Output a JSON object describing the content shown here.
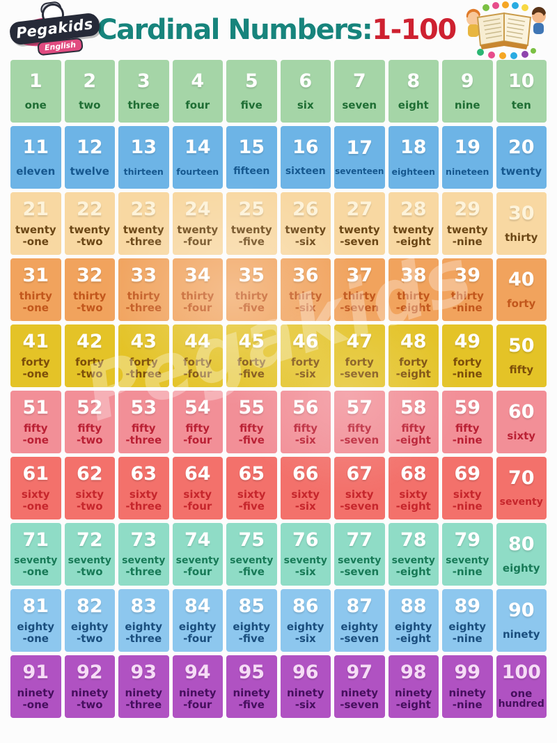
{
  "header": {
    "logo": {
      "brand": "Pegakids",
      "sub": "English"
    },
    "title": {
      "main": "Cardinal Numbers:",
      "range": "1-100",
      "main_color": "#17847c",
      "range_color": "#ce2130"
    },
    "illustration": "open-book-with-kids",
    "watermark_text": "Pegakids"
  },
  "grid": {
    "rows": [
      {
        "bg": "#a5d5a7",
        "num_color": "#ffffff",
        "word_color": "#1f6e34",
        "cells": [
          {
            "n": "1",
            "lines": [
              "one"
            ]
          },
          {
            "n": "2",
            "lines": [
              "two"
            ]
          },
          {
            "n": "3",
            "lines": [
              "three"
            ]
          },
          {
            "n": "4",
            "lines": [
              "four"
            ]
          },
          {
            "n": "5",
            "lines": [
              "five"
            ]
          },
          {
            "n": "6",
            "lines": [
              "six"
            ]
          },
          {
            "n": "7",
            "lines": [
              "seven"
            ]
          },
          {
            "n": "8",
            "lines": [
              "eight"
            ]
          },
          {
            "n": "9",
            "lines": [
              "nine"
            ]
          },
          {
            "n": "10",
            "lines": [
              "ten"
            ]
          }
        ]
      },
      {
        "bg": "#6db4e6",
        "num_color": "#ffffff",
        "word_color": "#16588f",
        "cells": [
          {
            "n": "11",
            "lines": [
              "eleven"
            ]
          },
          {
            "n": "12",
            "lines": [
              "twelve"
            ]
          },
          {
            "n": "13",
            "lines": [
              "thirteen"
            ]
          },
          {
            "n": "14",
            "lines": [
              "fourteen"
            ]
          },
          {
            "n": "15",
            "lines": [
              "fifteen"
            ]
          },
          {
            "n": "16",
            "lines": [
              "sixteen"
            ]
          },
          {
            "n": "17",
            "lines": [
              "seventeen"
            ]
          },
          {
            "n": "18",
            "lines": [
              "eighteen"
            ]
          },
          {
            "n": "19",
            "lines": [
              "nineteen"
            ]
          },
          {
            "n": "20",
            "lines": [
              "twenty"
            ]
          }
        ]
      },
      {
        "bg": "#f8d8a2",
        "num_color": "#fdf3da",
        "word_color": "#6b4716",
        "cells": [
          {
            "n": "21",
            "lines": [
              "twenty",
              "-one"
            ]
          },
          {
            "n": "22",
            "lines": [
              "twenty",
              "-two"
            ]
          },
          {
            "n": "23",
            "lines": [
              "twenty",
              "-three"
            ]
          },
          {
            "n": "24",
            "lines": [
              "twenty",
              "-four"
            ]
          },
          {
            "n": "25",
            "lines": [
              "twenty",
              "-five"
            ]
          },
          {
            "n": "26",
            "lines": [
              "twenty",
              "-six"
            ]
          },
          {
            "n": "27",
            "lines": [
              "twenty",
              "-seven"
            ]
          },
          {
            "n": "28",
            "lines": [
              "twenty",
              "-eight"
            ]
          },
          {
            "n": "29",
            "lines": [
              "twenty",
              "-nine"
            ]
          },
          {
            "n": "30",
            "lines": [
              "thirty"
            ]
          }
        ]
      },
      {
        "bg": "#f1a35d",
        "num_color": "#ffffff",
        "word_color": "#c2571c",
        "cells": [
          {
            "n": "31",
            "lines": [
              "thirty",
              "-one"
            ]
          },
          {
            "n": "32",
            "lines": [
              "thirty",
              "-two"
            ]
          },
          {
            "n": "33",
            "lines": [
              "thirty",
              "-three"
            ]
          },
          {
            "n": "34",
            "lines": [
              "thirty",
              "-four"
            ]
          },
          {
            "n": "35",
            "lines": [
              "thirty",
              "-five"
            ]
          },
          {
            "n": "36",
            "lines": [
              "thirty",
              "-six"
            ]
          },
          {
            "n": "37",
            "lines": [
              "thirty",
              "-seven"
            ]
          },
          {
            "n": "38",
            "lines": [
              "thirty",
              "-eight"
            ]
          },
          {
            "n": "39",
            "lines": [
              "thirty",
              "-nine"
            ]
          },
          {
            "n": "40",
            "lines": [
              "forty"
            ]
          }
        ]
      },
      {
        "bg": "#e4c327",
        "num_color": "#ffffff",
        "word_color": "#7c4e0a",
        "cells": [
          {
            "n": "41",
            "lines": [
              "forty",
              "-one"
            ]
          },
          {
            "n": "42",
            "lines": [
              "forty",
              "-two"
            ]
          },
          {
            "n": "43",
            "lines": [
              "forty",
              "-three"
            ]
          },
          {
            "n": "44",
            "lines": [
              "forty",
              "-four"
            ]
          },
          {
            "n": "45",
            "lines": [
              "forty",
              "-five"
            ]
          },
          {
            "n": "46",
            "lines": [
              "forty",
              "-six"
            ]
          },
          {
            "n": "47",
            "lines": [
              "forty",
              "-seven"
            ]
          },
          {
            "n": "48",
            "lines": [
              "forty",
              "-eight"
            ]
          },
          {
            "n": "49",
            "lines": [
              "forty",
              "-nine"
            ]
          },
          {
            "n": "50",
            "lines": [
              "fifty"
            ]
          }
        ]
      },
      {
        "bg": "#f28f97",
        "num_color": "#ffffff",
        "word_color": "#ba2034",
        "cells": [
          {
            "n": "51",
            "lines": [
              "fifty",
              "-one"
            ]
          },
          {
            "n": "52",
            "lines": [
              "fifty",
              "-two"
            ]
          },
          {
            "n": "53",
            "lines": [
              "fifty",
              "-three"
            ]
          },
          {
            "n": "54",
            "lines": [
              "fifty",
              "-four"
            ]
          },
          {
            "n": "55",
            "lines": [
              "fifty",
              "-five"
            ]
          },
          {
            "n": "56",
            "lines": [
              "fifty",
              "-six"
            ]
          },
          {
            "n": "57",
            "lines": [
              "fifty",
              "-seven"
            ]
          },
          {
            "n": "58",
            "lines": [
              "fifty",
              "-eight"
            ]
          },
          {
            "n": "59",
            "lines": [
              "fifty",
              "-nine"
            ]
          },
          {
            "n": "60",
            "lines": [
              "sixty"
            ]
          }
        ]
      },
      {
        "bg": "#f3716b",
        "num_color": "#ffffff",
        "word_color": "#c6262c",
        "cells": [
          {
            "n": "61",
            "lines": [
              "sixty",
              "-one"
            ]
          },
          {
            "n": "62",
            "lines": [
              "sixty",
              "-two"
            ]
          },
          {
            "n": "63",
            "lines": [
              "sixty",
              "-three"
            ]
          },
          {
            "n": "64",
            "lines": [
              "sixty",
              "-four"
            ]
          },
          {
            "n": "65",
            "lines": [
              "sixty",
              "-five"
            ]
          },
          {
            "n": "66",
            "lines": [
              "sixty",
              "-six"
            ]
          },
          {
            "n": "67",
            "lines": [
              "sixty",
              "-seven"
            ]
          },
          {
            "n": "68",
            "lines": [
              "sixty",
              "-eight"
            ]
          },
          {
            "n": "69",
            "lines": [
              "sixty",
              "-nine"
            ]
          },
          {
            "n": "70",
            "lines": [
              "seventy"
            ]
          }
        ]
      },
      {
        "bg": "#8fdcc6",
        "num_color": "#ffffff",
        "word_color": "#187a57",
        "cells": [
          {
            "n": "71",
            "lines": [
              "seventy",
              "-one"
            ]
          },
          {
            "n": "72",
            "lines": [
              "seventy",
              "-two"
            ]
          },
          {
            "n": "73",
            "lines": [
              "seventy",
              "-three"
            ]
          },
          {
            "n": "74",
            "lines": [
              "seventy",
              "-four"
            ]
          },
          {
            "n": "75",
            "lines": [
              "seventy",
              "-five"
            ]
          },
          {
            "n": "76",
            "lines": [
              "seventy",
              "-six"
            ]
          },
          {
            "n": "77",
            "lines": [
              "seventy",
              "-seven"
            ]
          },
          {
            "n": "78",
            "lines": [
              "seventy",
              "-eight"
            ]
          },
          {
            "n": "79",
            "lines": [
              "seventy",
              "-nine"
            ]
          },
          {
            "n": "80",
            "lines": [
              "eighty"
            ]
          }
        ]
      },
      {
        "bg": "#8dc7ee",
        "num_color": "#ffffff",
        "word_color": "#1a4e7d",
        "cells": [
          {
            "n": "81",
            "lines": [
              "eighty",
              "-one"
            ]
          },
          {
            "n": "82",
            "lines": [
              "eighty",
              "-two"
            ]
          },
          {
            "n": "83",
            "lines": [
              "eighty",
              "-three"
            ]
          },
          {
            "n": "84",
            "lines": [
              "eighty",
              "-four"
            ]
          },
          {
            "n": "85",
            "lines": [
              "eighty",
              "-five"
            ]
          },
          {
            "n": "86",
            "lines": [
              "eighty",
              "-six"
            ]
          },
          {
            "n": "87",
            "lines": [
              "eighty",
              "-seven"
            ]
          },
          {
            "n": "88",
            "lines": [
              "eighty",
              "-eight"
            ]
          },
          {
            "n": "89",
            "lines": [
              "eighty",
              "-nine"
            ]
          },
          {
            "n": "90",
            "lines": [
              "ninety"
            ]
          }
        ]
      },
      {
        "bg": "#b052c2",
        "num_color": "#f6dcf6",
        "word_color": "#460f5e",
        "cells": [
          {
            "n": "91",
            "lines": [
              "ninety",
              "-one"
            ]
          },
          {
            "n": "92",
            "lines": [
              "ninety",
              "-two"
            ]
          },
          {
            "n": "93",
            "lines": [
              "ninety",
              "-three"
            ]
          },
          {
            "n": "94",
            "lines": [
              "ninety",
              "-four"
            ]
          },
          {
            "n": "95",
            "lines": [
              "ninety",
              "-five"
            ]
          },
          {
            "n": "96",
            "lines": [
              "ninety",
              "-six"
            ]
          },
          {
            "n": "97",
            "lines": [
              "ninety",
              "-seven"
            ]
          },
          {
            "n": "98",
            "lines": [
              "ninety",
              "-eight"
            ]
          },
          {
            "n": "99",
            "lines": [
              "ninety",
              "-nine"
            ]
          },
          {
            "n": "100",
            "lines": [
              "one",
              "hundred"
            ]
          }
        ]
      }
    ]
  }
}
